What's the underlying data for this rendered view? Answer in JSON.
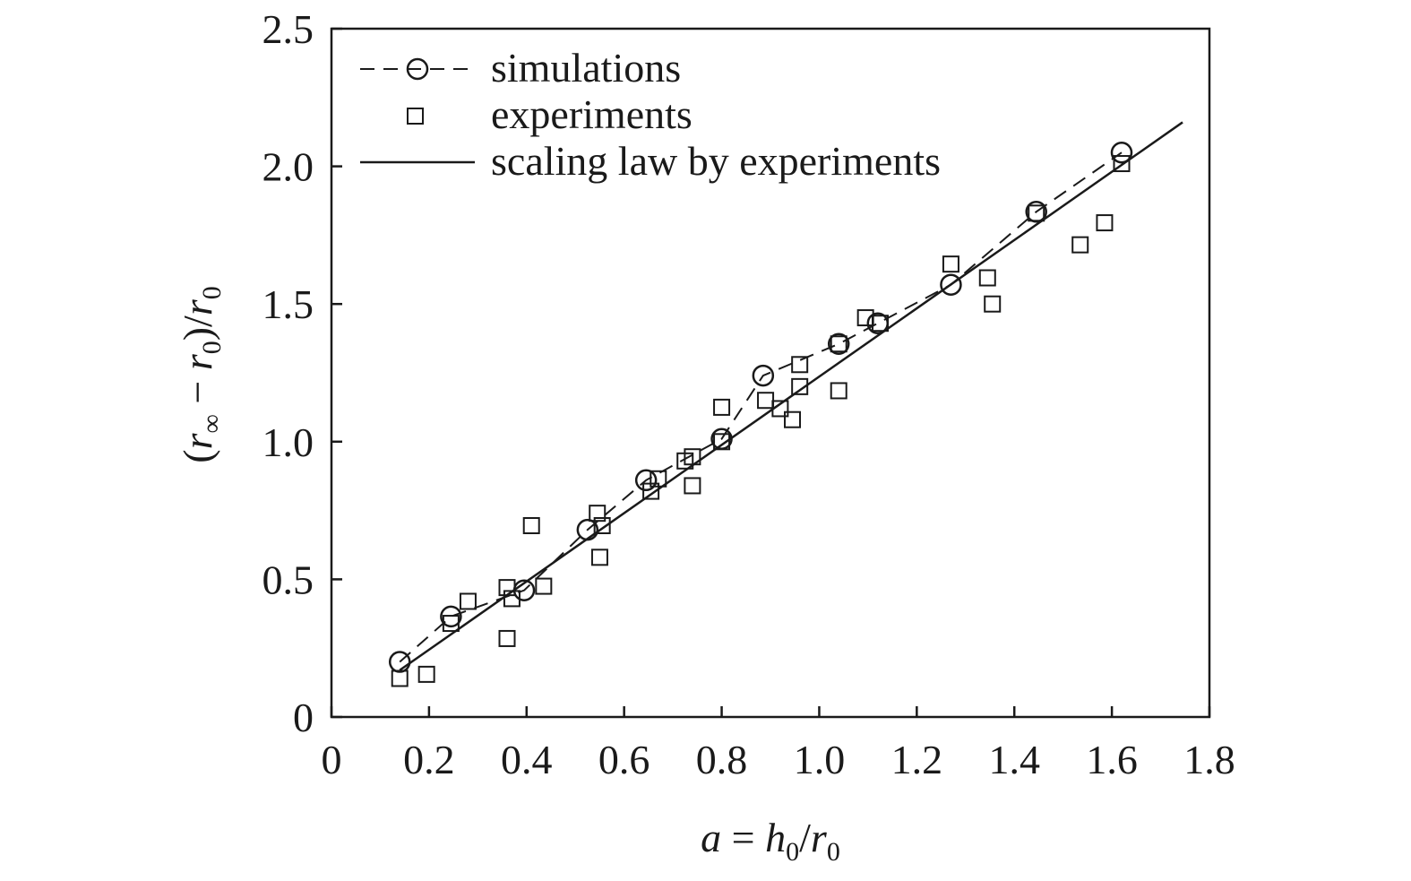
{
  "chart_data": {
    "type": "scatter",
    "xlabel": {
      "var": "a",
      "eq": " = ",
      "num": "h",
      "num_sub": "0",
      "slash": "/",
      "den": "r",
      "den_sub": "0"
    },
    "ylabel": {
      "open": "(",
      "a": "r",
      "a_sub": "∞",
      "minus": " − ",
      "b": "r",
      "b_sub": "0",
      "close": ")/",
      "c": "r",
      "c_sub": "0"
    },
    "xlim": [
      0,
      1.8
    ],
    "ylim": [
      0,
      2.5
    ],
    "x_ticks": [
      {
        "value": 0,
        "label": "0"
      },
      {
        "value": 0.2,
        "label": "0.2"
      },
      {
        "value": 0.4,
        "label": "0.4"
      },
      {
        "value": 0.6,
        "label": "0.6"
      },
      {
        "value": 0.8,
        "label": "0.8"
      },
      {
        "value": 1.0,
        "label": "1.0"
      },
      {
        "value": 1.2,
        "label": "1.2"
      },
      {
        "value": 1.4,
        "label": "1.4"
      },
      {
        "value": 1.6,
        "label": "1.6"
      },
      {
        "value": 1.8,
        "label": "1.8"
      }
    ],
    "y_ticks": [
      {
        "value": 0,
        "label": "0"
      },
      {
        "value": 0.5,
        "label": "0.5"
      },
      {
        "value": 1.0,
        "label": "1.0"
      },
      {
        "value": 1.5,
        "label": "1.5"
      },
      {
        "value": 2.0,
        "label": "2.0"
      },
      {
        "value": 2.5,
        "label": "2.5"
      }
    ],
    "legend": {
      "placement": "top-left"
    },
    "series": [
      {
        "name": "simulations",
        "style": "dashed-line-circle",
        "x": [
          0.14,
          0.245,
          0.395,
          0.525,
          0.645,
          0.8,
          0.885,
          1.04,
          1.12,
          1.27,
          1.445,
          1.62
        ],
        "y": [
          0.2,
          0.365,
          0.46,
          0.68,
          0.86,
          1.01,
          1.24,
          1.355,
          1.43,
          1.57,
          1.835,
          2.05
        ]
      },
      {
        "name": "experiments",
        "style": "open-square",
        "x": [
          0.14,
          0.195,
          0.245,
          0.28,
          0.36,
          0.36,
          0.37,
          0.41,
          0.435,
          0.545,
          0.55,
          0.555,
          0.655,
          0.67,
          0.725,
          0.74,
          0.74,
          0.8,
          0.8,
          0.89,
          0.92,
          0.945,
          0.96,
          0.96,
          1.04,
          1.04,
          1.095,
          1.125,
          1.27,
          1.345,
          1.355,
          1.445,
          1.535,
          1.585,
          1.62
        ],
        "y": [
          0.14,
          0.155,
          0.34,
          0.42,
          0.47,
          0.285,
          0.43,
          0.695,
          0.475,
          0.74,
          0.58,
          0.695,
          0.82,
          0.865,
          0.93,
          0.945,
          0.84,
          1.125,
          1.0,
          1.15,
          1.12,
          1.08,
          1.2,
          1.28,
          1.185,
          1.355,
          1.45,
          1.43,
          1.645,
          1.595,
          1.5,
          1.83,
          1.715,
          1.795,
          2.01
        ]
      },
      {
        "name": "scaling law by experiments",
        "style": "solid-line",
        "x": [
          0.14,
          1.745
        ],
        "y": [
          0.17,
          2.16
        ]
      }
    ]
  }
}
